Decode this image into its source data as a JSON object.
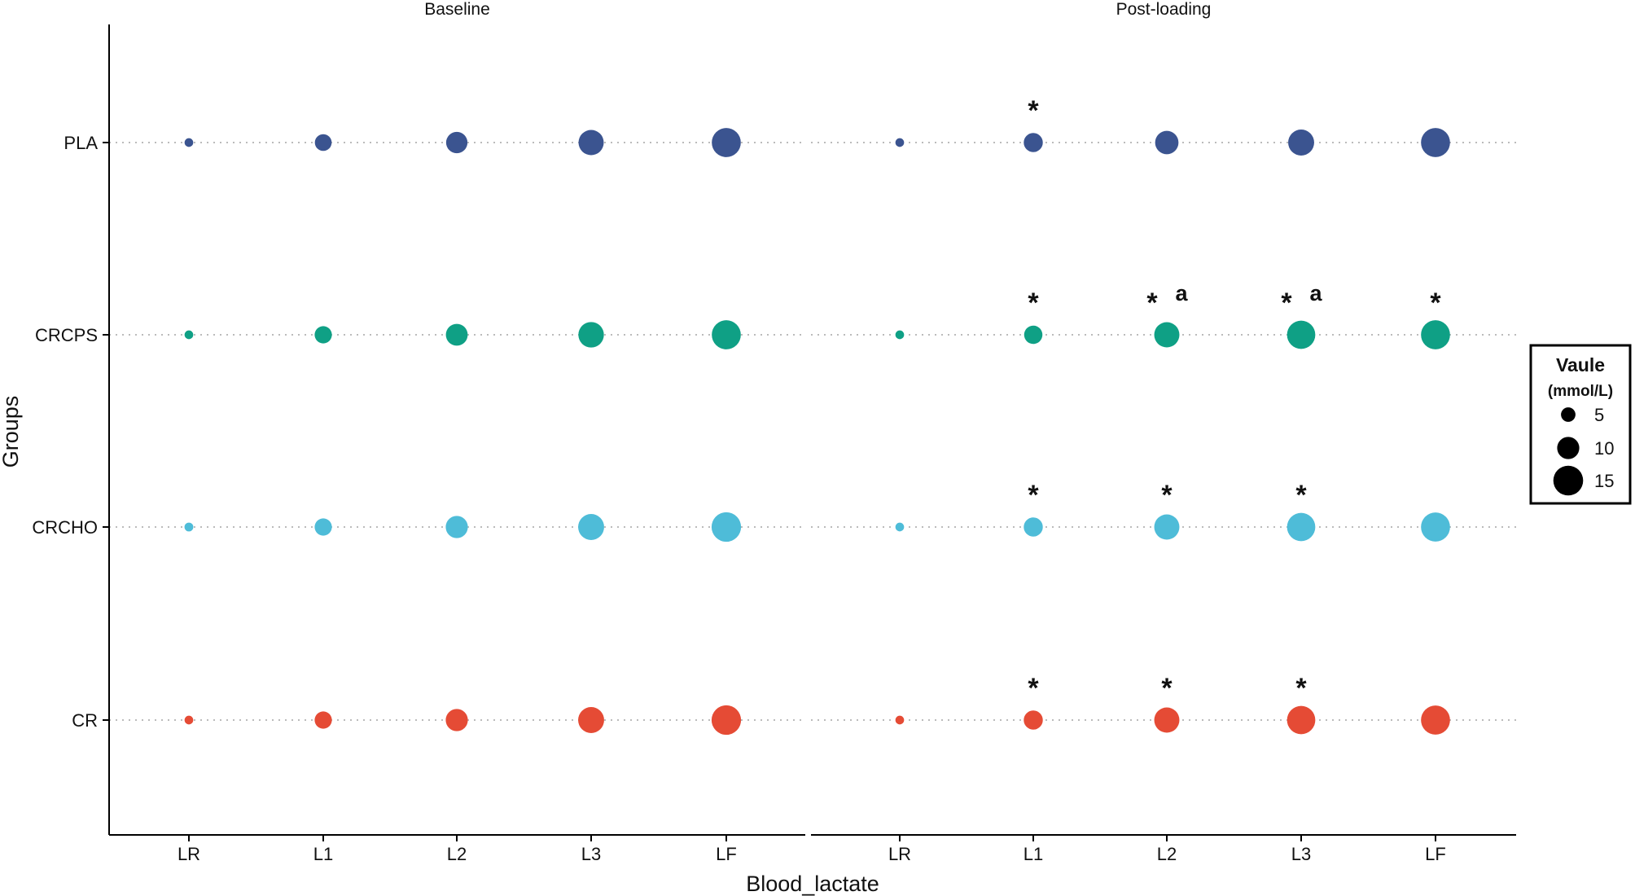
{
  "chart_data": {
    "type": "scatter",
    "subtype": "bubble-dot-plot",
    "xlabel": "Blood_lactate",
    "ylabel": "Groups",
    "grid": "dotted horizontal lines per group",
    "legend_position": "right",
    "categories": [
      "LR",
      "L1",
      "L2",
      "L3",
      "LF"
    ],
    "groups": [
      "CR",
      "CRCHO",
      "CRCPS",
      "PLA"
    ],
    "colors": {
      "PLA": "#3b5490",
      "CRCPS": "#0fa085",
      "CRCHO": "#4ebcd8",
      "CR": "#e54b35"
    },
    "panels": [
      {
        "title": "Baseline",
        "series": [
          {
            "name": "PLA",
            "values": [
              1.2,
              6.5,
              9.5,
              12.0,
              14.5
            ]
          },
          {
            "name": "CRCPS",
            "values": [
              1.2,
              6.8,
              9.8,
              12.2,
              14.5
            ]
          },
          {
            "name": "CRCHO",
            "values": [
              1.3,
              6.8,
              10.0,
              12.5,
              14.8
            ]
          },
          {
            "name": "CR",
            "values": [
              1.2,
              6.8,
              10.0,
              12.5,
              14.8
            ]
          }
        ],
        "annotations": []
      },
      {
        "title": "Post-loading",
        "series": [
          {
            "name": "PLA",
            "values": [
              1.2,
              8.0,
              10.8,
              12.5,
              14.5
            ]
          },
          {
            "name": "CRCPS",
            "values": [
              1.2,
              7.5,
              12.0,
              14.0,
              14.5
            ]
          },
          {
            "name": "CRCHO",
            "values": [
              1.2,
              8.0,
              12.0,
              14.0,
              14.5
            ]
          },
          {
            "name": "CR",
            "values": [
              1.2,
              8.0,
              12.0,
              14.0,
              14.5
            ]
          }
        ],
        "annotations": [
          {
            "group": "PLA",
            "category": "L1",
            "marks": [
              "*"
            ]
          },
          {
            "group": "CRCPS",
            "category": "L1",
            "marks": [
              "*"
            ]
          },
          {
            "group": "CRCPS",
            "category": "L2",
            "marks": [
              "*",
              "a"
            ]
          },
          {
            "group": "CRCPS",
            "category": "L3",
            "marks": [
              "*",
              "a"
            ]
          },
          {
            "group": "CRCPS",
            "category": "LF",
            "marks": [
              "*"
            ]
          },
          {
            "group": "CRCHO",
            "category": "L1",
            "marks": [
              "*"
            ]
          },
          {
            "group": "CRCHO",
            "category": "L2",
            "marks": [
              "*"
            ]
          },
          {
            "group": "CRCHO",
            "category": "L3",
            "marks": [
              "*"
            ]
          },
          {
            "group": "CR",
            "category": "L1",
            "marks": [
              "*"
            ]
          },
          {
            "group": "CR",
            "category": "L2",
            "marks": [
              "*"
            ]
          },
          {
            "group": "CR",
            "category": "L3",
            "marks": [
              "*"
            ]
          }
        ]
      }
    ],
    "legend": {
      "title": "Vaule",
      "subtitle": "(mmol/L)",
      "values": [
        5,
        10,
        15
      ]
    }
  }
}
